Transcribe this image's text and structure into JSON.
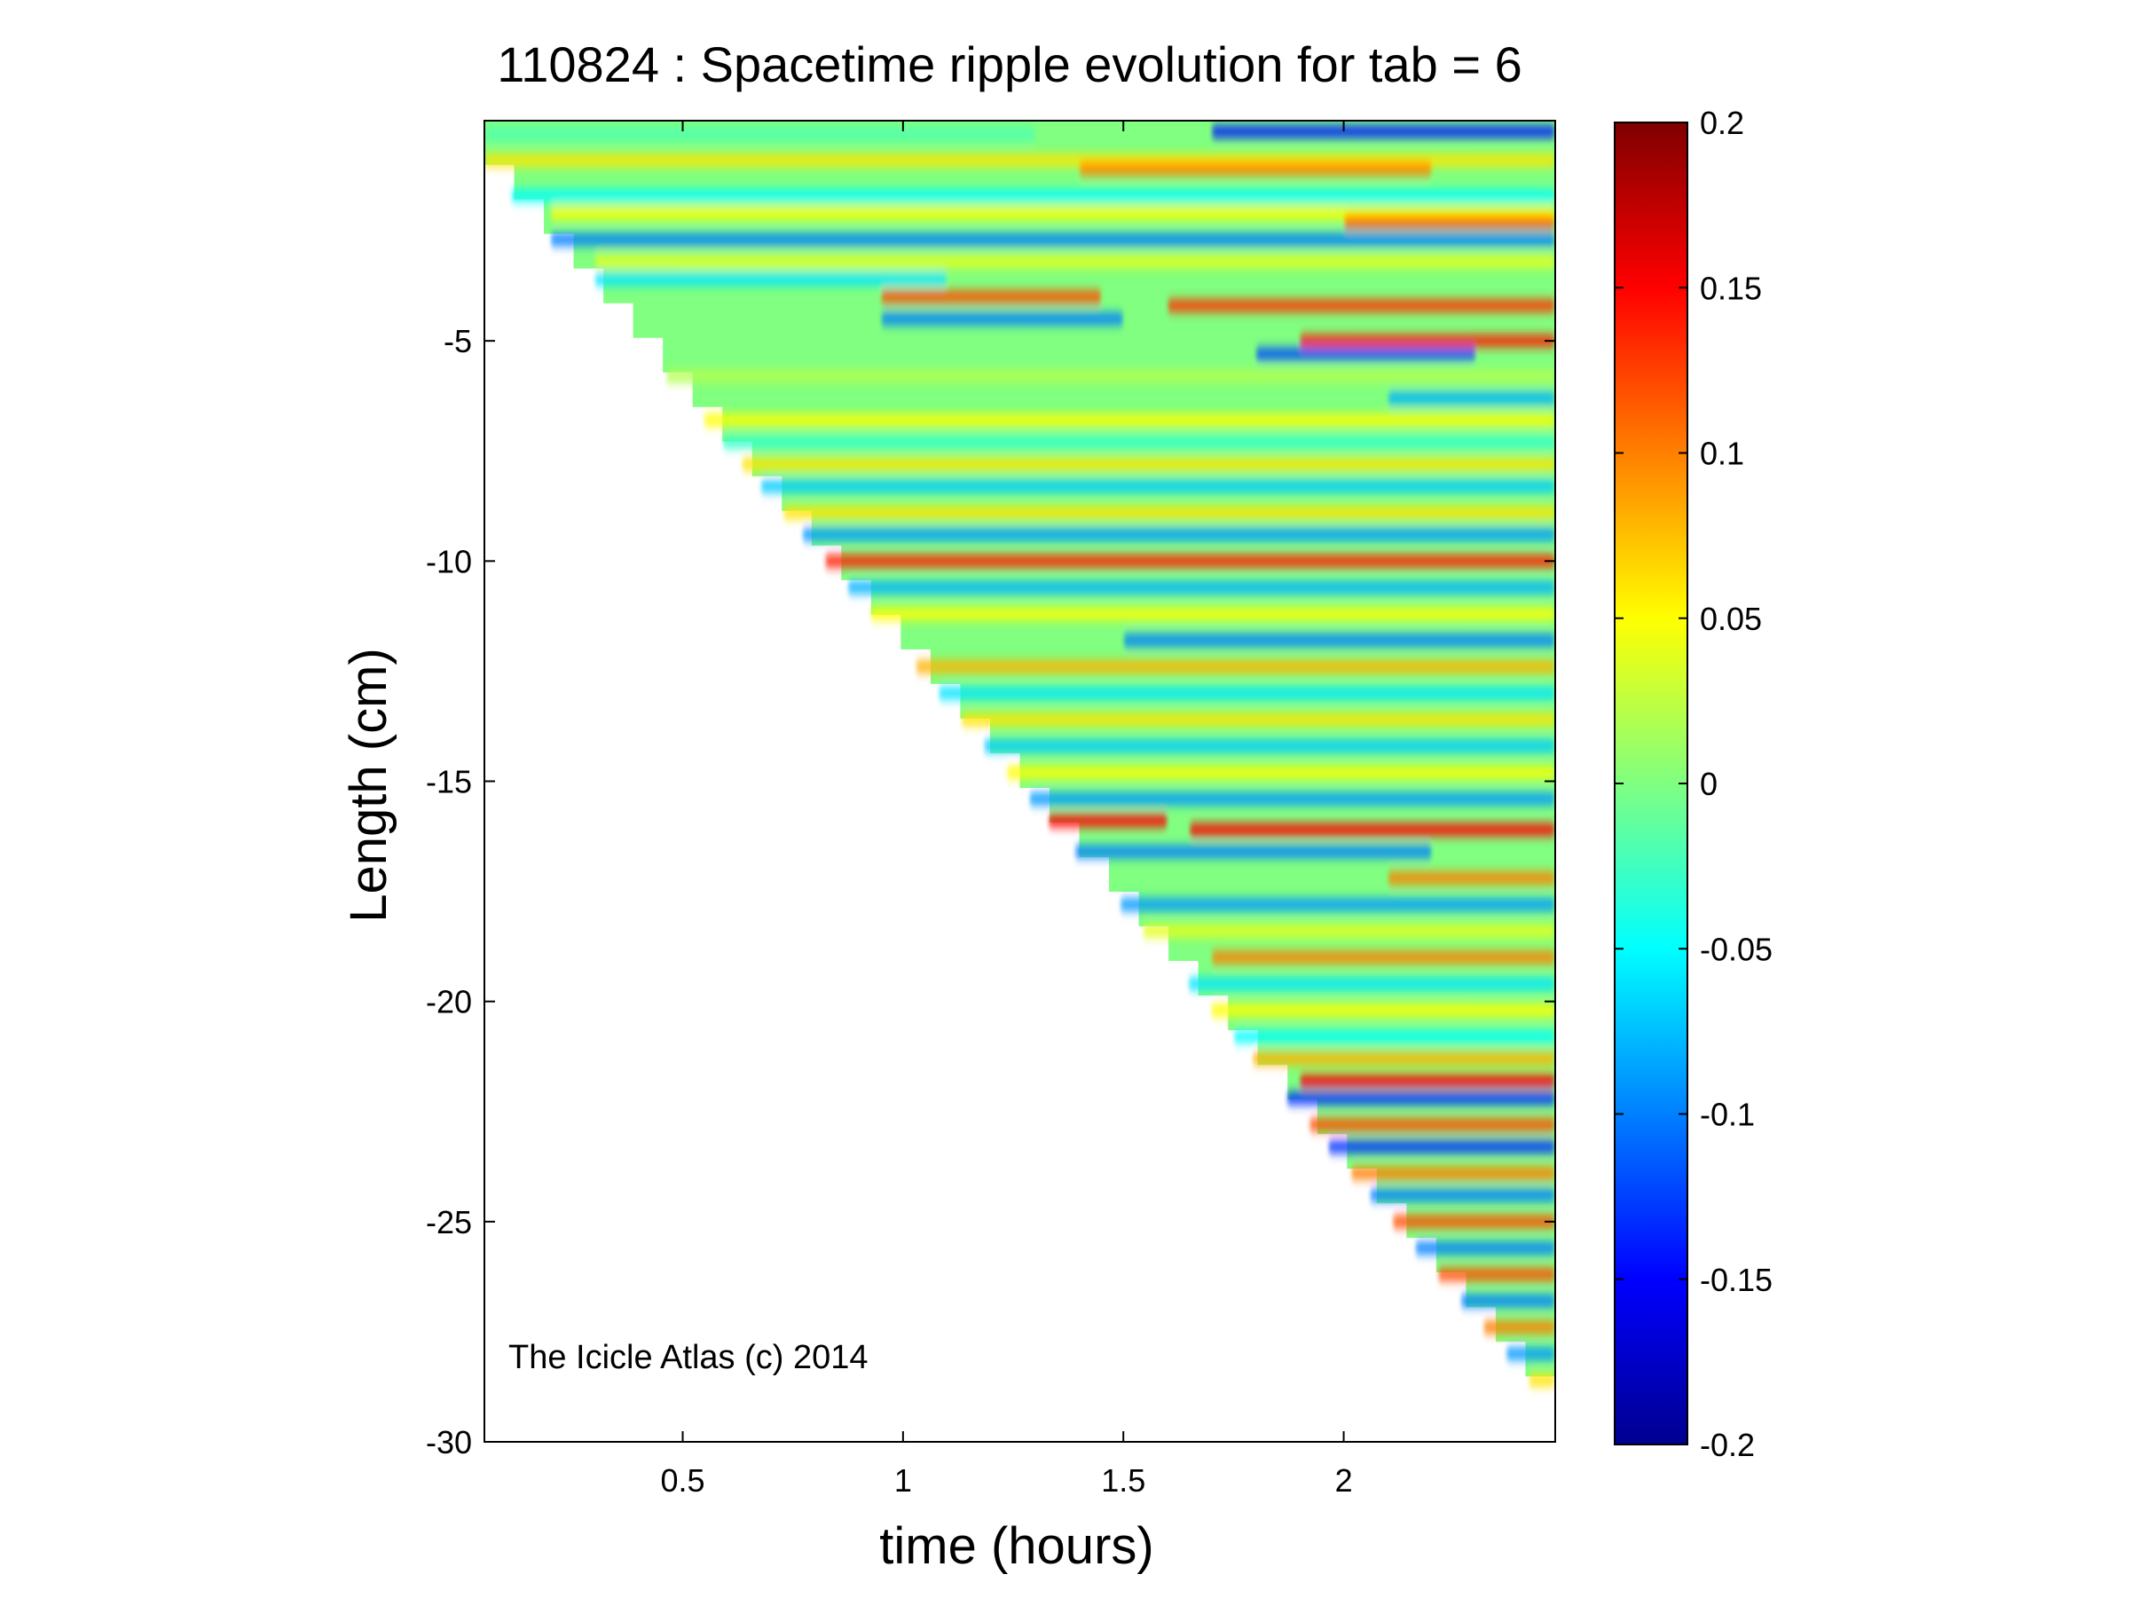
{
  "chart_data": {
    "type": "heatmap",
    "title": "110824 : Spacetime ripple evolution for tab = 6",
    "xlabel": "time (hours)",
    "ylabel": "Length (cm)",
    "xlim": [
      0.05,
      2.48
    ],
    "ylim": [
      -30,
      0
    ],
    "x_ticks": [
      {
        "value": 0.5,
        "label": "0.5"
      },
      {
        "value": 1,
        "label": "1"
      },
      {
        "value": 1.5,
        "label": "1.5"
      },
      {
        "value": 2,
        "label": "2"
      }
    ],
    "y_ticks": [
      {
        "value": -5,
        "label": "-5"
      },
      {
        "value": -10,
        "label": "-10"
      },
      {
        "value": -15,
        "label": "-15"
      },
      {
        "value": -20,
        "label": "-20"
      },
      {
        "value": -25,
        "label": "-25"
      },
      {
        "value": -30,
        "label": "-30"
      }
    ],
    "colorbar": {
      "colormap": "jet",
      "range": [
        -0.2,
        0.2
      ],
      "ticks": [
        {
          "value": 0.2,
          "label": "0.2"
        },
        {
          "value": 0.15,
          "label": "0.15"
        },
        {
          "value": 0.1,
          "label": "0.1"
        },
        {
          "value": 0.05,
          "label": "0.05"
        },
        {
          "value": 0,
          "label": "0"
        },
        {
          "value": -0.05,
          "label": "-0.05"
        },
        {
          "value": -0.1,
          "label": "-0.1"
        },
        {
          "value": -0.15,
          "label": "-0.15"
        },
        {
          "value": -0.2,
          "label": "-0.2"
        }
      ]
    },
    "boundary": {
      "description": "data exists only for length greater than the growing tip position; tip moves from about -1 cm at t=0.05 h to about -29.3 cm at t=2.48 h",
      "start": {
        "time": 0.05,
        "length": -1.0
      },
      "end": {
        "time": 2.48,
        "length": -29.3
      }
    },
    "bands": [
      {
        "length": -0.3,
        "value": -0.02,
        "t_from": 0.05,
        "t_to": 1.3
      },
      {
        "length": -0.25,
        "value": -0.14,
        "t_from": 1.7,
        "t_to": 2.48
      },
      {
        "length": -0.9,
        "value": 0.06,
        "t_from": 0.05,
        "t_to": 2.48
      },
      {
        "length": -1.1,
        "value": 0.1,
        "t_from": 1.4,
        "t_to": 2.2
      },
      {
        "length": -1.7,
        "value": -0.05,
        "t_from": 0.1,
        "t_to": 2.48
      },
      {
        "length": -2.1,
        "value": 0.05,
        "t_from": 0.2,
        "t_to": 2.48
      },
      {
        "length": -2.3,
        "value": 0.12,
        "t_from": 2.0,
        "t_to": 2.48
      },
      {
        "length": -2.7,
        "value": -0.1,
        "t_from": 0.2,
        "t_to": 2.48
      },
      {
        "length": -3.2,
        "value": 0.04,
        "t_from": 0.3,
        "t_to": 2.48
      },
      {
        "length": -3.6,
        "value": -0.06,
        "t_from": 0.3,
        "t_to": 1.1
      },
      {
        "length": -4.0,
        "value": 0.12,
        "t_from": 0.95,
        "t_to": 1.45
      },
      {
        "length": -4.5,
        "value": -0.1,
        "t_from": 0.95,
        "t_to": 1.5
      },
      {
        "length": -4.2,
        "value": 0.13,
        "t_from": 1.6,
        "t_to": 2.48
      },
      {
        "length": -5.0,
        "value": 0.14,
        "t_from": 1.9,
        "t_to": 2.48
      },
      {
        "length": -5.3,
        "value": -0.12,
        "t_from": 1.8,
        "t_to": 2.3
      },
      {
        "length": -5.8,
        "value": 0.02,
        "t_from": 0.4,
        "t_to": 2.48
      },
      {
        "length": -6.3,
        "value": -0.08,
        "t_from": 2.1,
        "t_to": 2.48
      },
      {
        "length": -6.8,
        "value": 0.05,
        "t_from": 0.45,
        "t_to": 2.48
      },
      {
        "length": -7.3,
        "value": -0.03,
        "t_from": 0.5,
        "t_to": 2.48
      },
      {
        "length": -7.8,
        "value": 0.06,
        "t_from": 0.55,
        "t_to": 2.48
      },
      {
        "length": -8.3,
        "value": -0.07,
        "t_from": 0.6,
        "t_to": 2.48
      },
      {
        "length": -8.9,
        "value": 0.06,
        "t_from": 0.65,
        "t_to": 2.48
      },
      {
        "length": -9.4,
        "value": -0.09,
        "t_from": 0.7,
        "t_to": 2.48
      },
      {
        "length": -10.0,
        "value": 0.14,
        "t_from": 0.75,
        "t_to": 2.48
      },
      {
        "length": -10.6,
        "value": -0.08,
        "t_from": 0.8,
        "t_to": 2.48
      },
      {
        "length": -11.2,
        "value": 0.05,
        "t_from": 0.85,
        "t_to": 2.48
      },
      {
        "length": -11.8,
        "value": -0.1,
        "t_from": 1.5,
        "t_to": 2.48
      },
      {
        "length": -12.4,
        "value": 0.08,
        "t_from": 0.95,
        "t_to": 2.48
      },
      {
        "length": -13.0,
        "value": -0.06,
        "t_from": 1.0,
        "t_to": 2.48
      },
      {
        "length": -13.6,
        "value": 0.06,
        "t_from": 1.05,
        "t_to": 2.48
      },
      {
        "length": -14.2,
        "value": -0.07,
        "t_from": 1.1,
        "t_to": 2.48
      },
      {
        "length": -14.8,
        "value": 0.05,
        "t_from": 1.15,
        "t_to": 2.48
      },
      {
        "length": -15.4,
        "value": -0.09,
        "t_from": 1.2,
        "t_to": 2.48
      },
      {
        "length": -15.9,
        "value": 0.15,
        "t_from": 1.25,
        "t_to": 1.6
      },
      {
        "length": -16.1,
        "value": 0.15,
        "t_from": 1.65,
        "t_to": 2.48
      },
      {
        "length": -16.6,
        "value": -0.1,
        "t_from": 1.3,
        "t_to": 2.2
      },
      {
        "length": -17.2,
        "value": 0.1,
        "t_from": 2.1,
        "t_to": 2.48
      },
      {
        "length": -17.8,
        "value": -0.09,
        "t_from": 1.4,
        "t_to": 2.48
      },
      {
        "length": -18.4,
        "value": 0.04,
        "t_from": 1.45,
        "t_to": 2.48
      },
      {
        "length": -19.0,
        "value": 0.1,
        "t_from": 1.7,
        "t_to": 2.48
      },
      {
        "length": -19.6,
        "value": -0.06,
        "t_from": 1.55,
        "t_to": 2.48
      },
      {
        "length": -20.2,
        "value": 0.05,
        "t_from": 1.6,
        "t_to": 2.48
      },
      {
        "length": -20.8,
        "value": -0.05,
        "t_from": 1.65,
        "t_to": 2.48
      },
      {
        "length": -21.3,
        "value": 0.08,
        "t_from": 1.7,
        "t_to": 2.48
      },
      {
        "length": -21.8,
        "value": 0.15,
        "t_from": 1.9,
        "t_to": 2.48
      },
      {
        "length": -22.2,
        "value": -0.13,
        "t_from": 1.85,
        "t_to": 2.48
      },
      {
        "length": -22.8,
        "value": 0.12,
        "t_from": 1.85,
        "t_to": 2.48
      },
      {
        "length": -23.3,
        "value": -0.13,
        "t_from": 1.9,
        "t_to": 2.48
      },
      {
        "length": -23.9,
        "value": 0.1,
        "t_from": 1.95,
        "t_to": 2.48
      },
      {
        "length": -24.4,
        "value": -0.1,
        "t_from": 2.0,
        "t_to": 2.48
      },
      {
        "length": -25.0,
        "value": 0.12,
        "t_from": 2.05,
        "t_to": 2.48
      },
      {
        "length": -25.6,
        "value": -0.1,
        "t_from": 2.1,
        "t_to": 2.48
      },
      {
        "length": -26.2,
        "value": 0.12,
        "t_from": 2.15,
        "t_to": 2.48
      },
      {
        "length": -26.8,
        "value": -0.1,
        "t_from": 2.2,
        "t_to": 2.48
      },
      {
        "length": -27.4,
        "value": 0.1,
        "t_from": 2.25,
        "t_to": 2.48
      },
      {
        "length": -28.0,
        "value": -0.09,
        "t_from": 2.3,
        "t_to": 2.48
      },
      {
        "length": -28.6,
        "value": 0.06,
        "t_from": 2.35,
        "t_to": 2.48
      }
    ]
  },
  "annotation": "The Icicle Atlas (c) 2014"
}
